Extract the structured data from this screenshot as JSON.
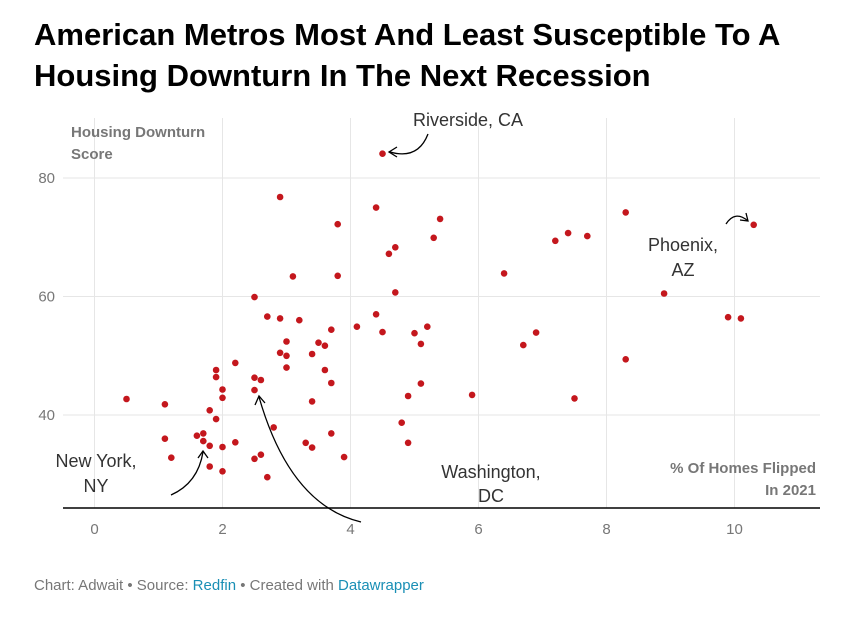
{
  "title": "American Metros Most And Least Susceptible To A Housing Downturn In The Next Recession",
  "footer": {
    "prefix": "Chart: Adwait • Source: ",
    "source": "Redfin",
    "middle": " • Created with ",
    "tool": "Datawrapper"
  },
  "chart_data": {
    "type": "scatter",
    "title": "American Metros Most And Least Susceptible To A Housing Downturn In The Next Recession",
    "ylabel_line1": "Housing Downturn",
    "ylabel_line2": "Score",
    "xlabel_line1": "% Of Homes Flipped",
    "xlabel_line2": "In 2021",
    "xlim": [
      -0.5,
      11.3
    ],
    "ylim": [
      24,
      92
    ],
    "x_ticks": [
      0,
      2,
      4,
      6,
      8,
      10
    ],
    "y_ticks": [
      40,
      60,
      80
    ],
    "grid": true,
    "point_color": "#c4171d",
    "annotations": [
      {
        "lines": [
          "Riverside, CA"
        ],
        "x": 4.5,
        "y": 84
      },
      {
        "lines": [
          "Phoenix,",
          "AZ"
        ],
        "x": 10.3,
        "y": 72
      },
      {
        "lines": [
          "New York,",
          "NY"
        ],
        "x": 1.8,
        "y": 34
      },
      {
        "lines": [
          "Washington,",
          "DC"
        ],
        "x": 2.6,
        "y": 44
      }
    ],
    "points": [
      [
        0.5,
        42.7
      ],
      [
        1.1,
        41.8
      ],
      [
        1.1,
        36.0
      ],
      [
        1.2,
        32.8
      ],
      [
        1.6,
        36.5
      ],
      [
        1.7,
        35.6
      ],
      [
        1.7,
        36.9
      ],
      [
        1.8,
        34.8
      ],
      [
        1.8,
        31.3
      ],
      [
        1.8,
        40.8
      ],
      [
        1.9,
        39.3
      ],
      [
        1.9,
        46.4
      ],
      [
        1.9,
        47.6
      ],
      [
        2.0,
        44.3
      ],
      [
        2.0,
        42.9
      ],
      [
        2.0,
        34.6
      ],
      [
        2.0,
        30.5
      ],
      [
        2.2,
        48.8
      ],
      [
        2.2,
        35.4
      ],
      [
        2.5,
        32.6
      ],
      [
        2.5,
        46.3
      ],
      [
        2.5,
        44.2
      ],
      [
        2.5,
        59.9
      ],
      [
        2.6,
        45.9
      ],
      [
        2.6,
        33.3
      ],
      [
        2.7,
        29.5
      ],
      [
        2.7,
        56.6
      ],
      [
        2.8,
        37.9
      ],
      [
        2.9,
        76.8
      ],
      [
        2.9,
        50.5
      ],
      [
        2.9,
        56.3
      ],
      [
        3.0,
        48.0
      ],
      [
        3.0,
        52.4
      ],
      [
        3.0,
        50.0
      ],
      [
        3.1,
        63.4
      ],
      [
        3.2,
        56.0
      ],
      [
        3.3,
        35.3
      ],
      [
        3.4,
        34.5
      ],
      [
        3.4,
        42.3
      ],
      [
        3.4,
        50.3
      ],
      [
        3.5,
        52.2
      ],
      [
        3.6,
        51.7
      ],
      [
        3.6,
        47.6
      ],
      [
        3.7,
        45.4
      ],
      [
        3.7,
        54.4
      ],
      [
        3.7,
        36.9
      ],
      [
        3.8,
        72.2
      ],
      [
        3.8,
        63.5
      ],
      [
        3.9,
        32.9
      ],
      [
        4.1,
        54.9
      ],
      [
        4.4,
        75.0
      ],
      [
        4.4,
        57.0
      ],
      [
        4.5,
        84.1
      ],
      [
        4.5,
        54.0
      ],
      [
        4.6,
        67.2
      ],
      [
        4.7,
        68.3
      ],
      [
        4.7,
        60.7
      ],
      [
        4.8,
        38.7
      ],
      [
        4.9,
        43.2
      ],
      [
        4.9,
        35.3
      ],
      [
        5.0,
        53.8
      ],
      [
        5.1,
        52.0
      ],
      [
        5.1,
        45.3
      ],
      [
        5.2,
        54.9
      ],
      [
        5.3,
        69.9
      ],
      [
        5.4,
        73.1
      ],
      [
        5.9,
        43.4
      ],
      [
        6.4,
        63.9
      ],
      [
        6.7,
        51.8
      ],
      [
        6.9,
        53.9
      ],
      [
        7.2,
        69.4
      ],
      [
        7.4,
        70.7
      ],
      [
        7.5,
        42.8
      ],
      [
        7.7,
        70.2
      ],
      [
        8.3,
        74.2
      ],
      [
        8.3,
        49.4
      ],
      [
        8.9,
        60.5
      ],
      [
        9.9,
        56.5
      ],
      [
        10.1,
        56.3
      ],
      [
        10.3,
        72.1
      ]
    ]
  }
}
